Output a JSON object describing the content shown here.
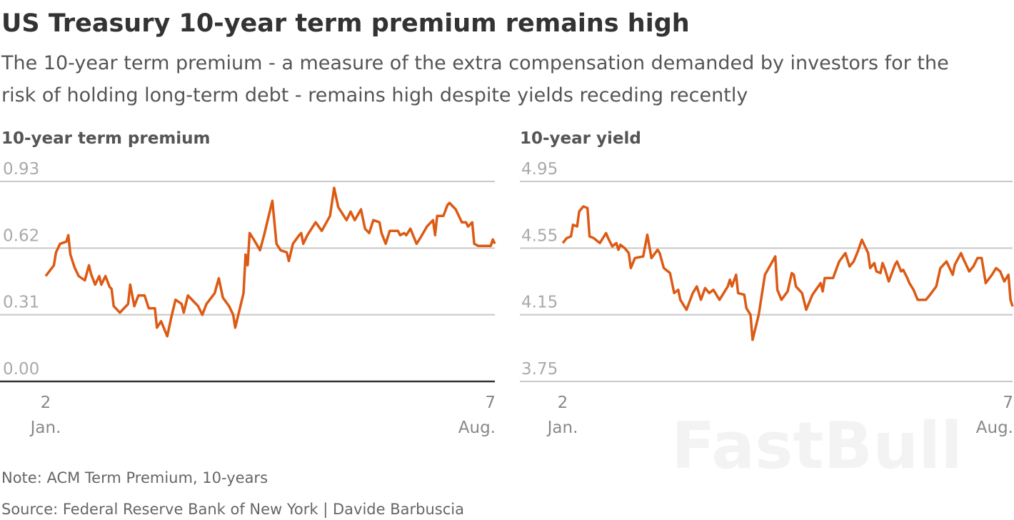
{
  "title": "US Treasury 10-year term premium remains high",
  "subtitle_line1": "The 10-year term premium - a measure of the extra compensation demanded by investors for the",
  "subtitle_line2": "risk of holding long-term debt - remains high despite yields receding recently",
  "note": "Note: ACM Term Premium, 10-years",
  "source": "Source: Federal Reserve Bank of New York | Davide Barbuscia",
  "watermark": "FastBull",
  "line_color": "#dc5a14",
  "chart_data": [
    {
      "type": "line",
      "title": "10-year term premium",
      "xlabel": "",
      "ylabel": "",
      "x_unit": "days since Jan 2",
      "xlim": [
        0,
        218
      ],
      "ylim": [
        0,
        0.93
      ],
      "yticks": [
        "0.93",
        "0.62",
        "0.31",
        "0.00"
      ],
      "ytick_values": [
        0.93,
        0.62,
        0.31,
        0
      ],
      "xticks": [
        {
          "day": "2",
          "month": "Jan.",
          "x": 0
        },
        {
          "day": "7",
          "month": "Aug.",
          "x": 218
        }
      ],
      "points": [
        [
          0,
          0.49
        ],
        [
          4,
          0.54
        ],
        [
          5,
          0.6
        ],
        [
          7,
          0.64
        ],
        [
          10,
          0.65
        ],
        [
          11,
          0.68
        ],
        [
          12,
          0.59
        ],
        [
          14,
          0.53
        ],
        [
          16,
          0.49
        ],
        [
          19,
          0.47
        ],
        [
          21,
          0.54
        ],
        [
          22,
          0.5
        ],
        [
          24,
          0.45
        ],
        [
          26,
          0.49
        ],
        [
          27,
          0.45
        ],
        [
          29,
          0.49
        ],
        [
          31,
          0.44
        ],
        [
          32,
          0.43
        ],
        [
          33,
          0.35
        ],
        [
          36,
          0.32
        ],
        [
          38,
          0.34
        ],
        [
          40,
          0.36
        ],
        [
          41,
          0.45
        ],
        [
          43,
          0.35
        ],
        [
          45,
          0.4
        ],
        [
          48,
          0.4
        ],
        [
          50,
          0.34
        ],
        [
          53,
          0.34
        ],
        [
          54,
          0.25
        ],
        [
          56,
          0.28
        ],
        [
          59,
          0.21
        ],
        [
          61,
          0.3
        ],
        [
          63,
          0.38
        ],
        [
          66,
          0.36
        ],
        [
          67,
          0.32
        ],
        [
          69,
          0.4
        ],
        [
          71,
          0.38
        ],
        [
          74,
          0.35
        ],
        [
          76,
          0.31
        ],
        [
          78,
          0.36
        ],
        [
          82,
          0.41
        ],
        [
          84,
          0.48
        ],
        [
          86,
          0.39
        ],
        [
          89,
          0.35
        ],
        [
          91,
          0.31
        ],
        [
          92,
          0.25
        ],
        [
          96,
          0.41
        ],
        [
          97,
          0.59
        ],
        [
          98,
          0.54
        ],
        [
          99,
          0.69
        ],
        [
          101,
          0.66
        ],
        [
          104,
          0.61
        ],
        [
          106,
          0.68
        ],
        [
          110,
          0.84
        ],
        [
          112,
          0.64
        ],
        [
          114,
          0.61
        ],
        [
          117,
          0.6
        ],
        [
          118,
          0.56
        ],
        [
          120,
          0.64
        ],
        [
          123,
          0.68
        ],
        [
          124,
          0.69
        ],
        [
          125,
          0.64
        ],
        [
          127,
          0.68
        ],
        [
          131,
          0.74
        ],
        [
          134,
          0.7
        ],
        [
          138,
          0.77
        ],
        [
          140,
          0.9
        ],
        [
          142,
          0.81
        ],
        [
          146,
          0.75
        ],
        [
          148,
          0.79
        ],
        [
          150,
          0.75
        ],
        [
          153,
          0.8
        ],
        [
          155,
          0.71
        ],
        [
          157,
          0.69
        ],
        [
          159,
          0.75
        ],
        [
          162,
          0.74
        ],
        [
          163,
          0.69
        ],
        [
          165,
          0.64
        ],
        [
          167,
          0.7
        ],
        [
          171,
          0.7
        ],
        [
          172,
          0.68
        ],
        [
          174,
          0.69
        ],
        [
          175,
          0.68
        ],
        [
          177,
          0.71
        ],
        [
          180,
          0.64
        ],
        [
          182,
          0.67
        ],
        [
          185,
          0.72
        ],
        [
          188,
          0.75
        ],
        [
          189,
          0.68
        ],
        [
          190,
          0.77
        ],
        [
          193,
          0.77
        ],
        [
          195,
          0.82
        ],
        [
          196,
          0.83
        ],
        [
          199,
          0.8
        ],
        [
          202,
          0.74
        ],
        [
          204,
          0.74
        ],
        [
          205,
          0.72
        ],
        [
          207,
          0.74
        ],
        [
          208,
          0.64
        ],
        [
          210,
          0.63
        ],
        [
          213,
          0.63
        ],
        [
          216,
          0.63
        ],
        [
          217,
          0.66
        ],
        [
          218,
          0.64
        ]
      ]
    },
    {
      "type": "line",
      "title": "10-year yield",
      "xlabel": "",
      "ylabel": "",
      "x_unit": "days since Jan 2",
      "xlim": [
        0,
        218
      ],
      "ylim": [
        3.75,
        4.95
      ],
      "yticks": [
        "4.95",
        "4.55",
        "4.15",
        "3.75"
      ],
      "ytick_values": [
        4.95,
        4.55,
        4.15,
        3.75
      ],
      "xticks": [
        {
          "day": "2",
          "month": "Jan.",
          "x": 0
        },
        {
          "day": "7",
          "month": "Aug.",
          "x": 218
        }
      ],
      "points": [
        [
          0,
          4.58
        ],
        [
          2,
          4.61
        ],
        [
          4,
          4.62
        ],
        [
          5,
          4.69
        ],
        [
          7,
          4.68
        ],
        [
          8,
          4.77
        ],
        [
          10,
          4.8
        ],
        [
          12,
          4.79
        ],
        [
          13,
          4.62
        ],
        [
          15,
          4.61
        ],
        [
          18,
          4.58
        ],
        [
          21,
          4.64
        ],
        [
          22,
          4.61
        ],
        [
          24,
          4.56
        ],
        [
          26,
          4.58
        ],
        [
          27,
          4.54
        ],
        [
          28,
          4.57
        ],
        [
          30,
          4.55
        ],
        [
          32,
          4.52
        ],
        [
          33,
          4.43
        ],
        [
          35,
          4.49
        ],
        [
          39,
          4.5
        ],
        [
          41,
          4.63
        ],
        [
          43,
          4.49
        ],
        [
          46,
          4.54
        ],
        [
          47,
          4.52
        ],
        [
          49,
          4.43
        ],
        [
          52,
          4.4
        ],
        [
          54,
          4.28
        ],
        [
          56,
          4.3
        ],
        [
          57,
          4.24
        ],
        [
          60,
          4.18
        ],
        [
          63,
          4.28
        ],
        [
          65,
          4.32
        ],
        [
          67,
          4.24
        ],
        [
          69,
          4.31
        ],
        [
          71,
          4.28
        ],
        [
          73,
          4.3
        ],
        [
          76,
          4.24
        ],
        [
          80,
          4.32
        ],
        [
          81,
          4.36
        ],
        [
          82,
          4.32
        ],
        [
          84,
          4.39
        ],
        [
          85,
          4.28
        ],
        [
          88,
          4.27
        ],
        [
          89,
          4.19
        ],
        [
          91,
          4.15
        ],
        [
          92,
          4.0
        ],
        [
          95,
          4.15
        ],
        [
          98,
          4.39
        ],
        [
          103,
          4.5
        ],
        [
          104,
          4.3
        ],
        [
          106,
          4.24
        ],
        [
          109,
          4.29
        ],
        [
          111,
          4.4
        ],
        [
          112,
          4.39
        ],
        [
          113,
          4.32
        ],
        [
          116,
          4.28
        ],
        [
          118,
          4.18
        ],
        [
          121,
          4.27
        ],
        [
          125,
          4.34
        ],
        [
          126,
          4.29
        ],
        [
          127,
          4.37
        ],
        [
          131,
          4.37
        ],
        [
          134,
          4.47
        ],
        [
          137,
          4.52
        ],
        [
          139,
          4.44
        ],
        [
          141,
          4.47
        ],
        [
          143,
          4.53
        ],
        [
          145,
          4.6
        ],
        [
          148,
          4.52
        ],
        [
          149,
          4.43
        ],
        [
          151,
          4.46
        ],
        [
          152,
          4.41
        ],
        [
          154,
          4.4
        ],
        [
          155,
          4.46
        ],
        [
          156,
          4.43
        ],
        [
          158,
          4.35
        ],
        [
          161,
          4.45
        ],
        [
          162,
          4.47
        ],
        [
          164,
          4.41
        ],
        [
          165,
          4.42
        ],
        [
          167,
          4.37
        ],
        [
          168,
          4.34
        ],
        [
          170,
          4.3
        ],
        [
          172,
          4.24
        ],
        [
          174,
          4.24
        ],
        [
          176,
          4.24
        ],
        [
          178,
          4.27
        ],
        [
          181,
          4.32
        ],
        [
          183,
          4.43
        ],
        [
          186,
          4.47
        ],
        [
          189,
          4.39
        ],
        [
          190,
          4.45
        ],
        [
          193,
          4.52
        ],
        [
          194,
          4.49
        ],
        [
          197,
          4.41
        ],
        [
          199,
          4.44
        ],
        [
          201,
          4.49
        ],
        [
          203,
          4.49
        ],
        [
          205,
          4.34
        ],
        [
          208,
          4.39
        ],
        [
          210,
          4.43
        ],
        [
          212,
          4.41
        ],
        [
          214,
          4.35
        ],
        [
          216,
          4.39
        ],
        [
          217,
          4.24
        ],
        [
          218,
          4.2
        ]
      ]
    }
  ]
}
